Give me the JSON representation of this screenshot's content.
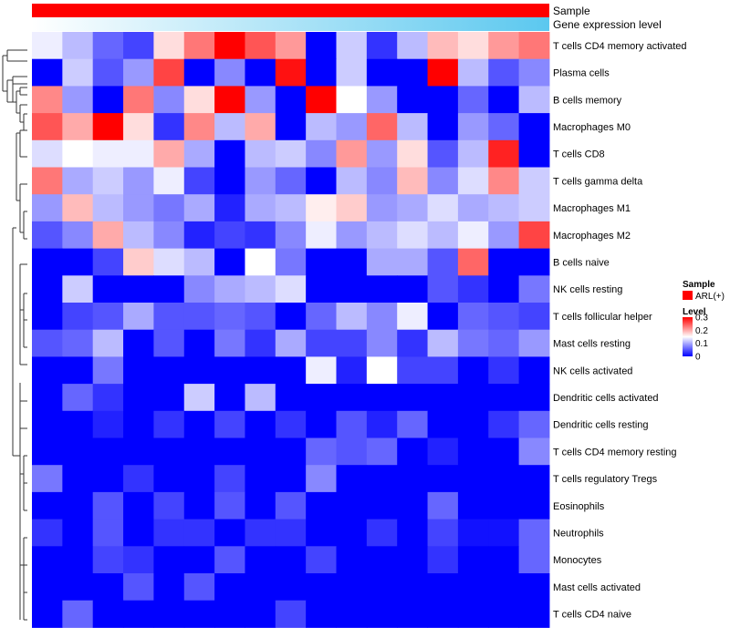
{
  "chart_data": {
    "type": "heatmap",
    "title": "",
    "annotation_tracks": [
      {
        "name": "Sample",
        "color": "#ff0000"
      },
      {
        "name": "Gene expression level",
        "gradient_from": "#ffffff",
        "gradient_to": "#5bc8ef"
      }
    ],
    "rows": [
      "T cells CD4 memory activated",
      "Plasma cells",
      "B cells memory",
      "Macrophages M0",
      "T cells CD8",
      "T cells gamma delta",
      "Macrophages M1",
      "Macrophages M2",
      "B cells naive",
      "NK cells resting",
      "T cells follicular helper",
      "Mast cells resting",
      "NK cells activated",
      "Dendritic cells activated",
      "Dendritic cells resting",
      "T cells CD4 memory resting",
      "T cells regulatory  Tregs",
      "Eosinophils",
      "Neutrophils",
      "Monocytes",
      "Mast cells activated",
      "T cells CD4 naive"
    ],
    "values": [
      [
        0.14,
        0.11,
        0.06,
        0.04,
        0.17,
        0.23,
        0.3,
        0.25,
        0.21,
        0.0,
        0.12,
        0.03,
        0.11,
        0.19,
        0.17,
        0.21,
        0.23
      ],
      [
        0.0,
        0.12,
        0.05,
        0.09,
        0.26,
        0.0,
        0.08,
        0.0,
        0.29,
        0.0,
        0.12,
        0.0,
        0.0,
        0.3,
        0.11,
        0.05,
        0.08
      ],
      [
        0.22,
        0.09,
        0.0,
        0.23,
        0.08,
        0.17,
        0.3,
        0.09,
        0.0,
        0.3,
        0.15,
        0.09,
        0.0,
        0.0,
        0.06,
        0.0,
        0.11
      ],
      [
        0.25,
        0.2,
        0.3,
        0.17,
        0.03,
        0.22,
        0.11,
        0.2,
        0.0,
        0.11,
        0.09,
        0.24,
        0.11,
        0.0,
        0.09,
        0.06,
        0.0
      ],
      [
        0.13,
        0.15,
        0.14,
        0.14,
        0.2,
        0.1,
        0.0,
        0.11,
        0.12,
        0.08,
        0.21,
        0.09,
        0.17,
        0.05,
        0.11,
        0.28,
        0.0
      ],
      [
        0.23,
        0.1,
        0.12,
        0.09,
        0.14,
        0.04,
        0.0,
        0.09,
        0.06,
        0.0,
        0.11,
        0.08,
        0.19,
        0.08,
        0.13,
        0.22,
        0.12
      ],
      [
        0.09,
        0.19,
        0.11,
        0.09,
        0.07,
        0.1,
        0.02,
        0.1,
        0.11,
        0.16,
        0.18,
        0.09,
        0.1,
        0.13,
        0.1,
        0.11,
        0.12
      ],
      [
        0.05,
        0.08,
        0.2,
        0.11,
        0.08,
        0.02,
        0.04,
        0.03,
        0.08,
        0.14,
        0.09,
        0.11,
        0.13,
        0.11,
        0.14,
        0.09,
        0.26
      ],
      [
        0.0,
        0.0,
        0.04,
        0.18,
        0.13,
        0.11,
        0.0,
        0.15,
        0.07,
        0.0,
        0.0,
        0.1,
        0.1,
        0.05,
        0.24,
        0.0,
        0.0
      ],
      [
        0.0,
        0.12,
        0.0,
        0.0,
        0.0,
        0.08,
        0.1,
        0.11,
        0.13,
        0.0,
        0.0,
        0.0,
        0.0,
        0.05,
        0.03,
        0.0,
        0.07
      ],
      [
        0.0,
        0.04,
        0.05,
        0.1,
        0.05,
        0.05,
        0.06,
        0.05,
        0.0,
        0.06,
        0.11,
        0.08,
        0.14,
        0.0,
        0.06,
        0.05,
        0.04
      ],
      [
        0.05,
        0.06,
        0.11,
        0.0,
        0.05,
        0.0,
        0.07,
        0.03,
        0.1,
        0.04,
        0.04,
        0.08,
        0.03,
        0.11,
        0.07,
        0.06,
        0.09
      ],
      [
        0.0,
        0.0,
        0.07,
        0.0,
        0.0,
        0.0,
        0.0,
        0.0,
        0.0,
        0.14,
        0.02,
        0.15,
        0.04,
        0.04,
        0.0,
        0.03,
        0.0
      ],
      [
        0.0,
        0.06,
        0.03,
        0.0,
        0.0,
        0.12,
        0.0,
        0.11,
        0.0,
        0.0,
        0.0,
        0.0,
        0.0,
        0.0,
        0.0,
        0.0,
        0.0
      ],
      [
        0.0,
        0.0,
        0.02,
        0.0,
        0.03,
        0.0,
        0.04,
        0.0,
        0.03,
        0.0,
        0.05,
        0.02,
        0.06,
        0.0,
        0.0,
        0.03,
        0.06
      ],
      [
        0.0,
        0.0,
        0.0,
        0.0,
        0.0,
        0.0,
        0.0,
        0.0,
        0.0,
        0.06,
        0.05,
        0.06,
        0.0,
        0.02,
        0.0,
        0.0,
        0.08
      ],
      [
        0.07,
        0.0,
        0.0,
        0.03,
        0.0,
        0.0,
        0.04,
        0.0,
        0.0,
        0.08,
        0.0,
        0.0,
        0.0,
        0.0,
        0.0,
        0.0,
        0.0
      ],
      [
        0.0,
        0.0,
        0.05,
        0.0,
        0.04,
        0.0,
        0.05,
        0.0,
        0.05,
        0.0,
        0.0,
        0.0,
        0.0,
        0.06,
        0.0,
        0.0,
        0.0
      ],
      [
        0.03,
        0.0,
        0.05,
        0.0,
        0.03,
        0.03,
        0.0,
        0.03,
        0.03,
        0.0,
        0.0,
        0.03,
        0.0,
        0.04,
        0.01,
        0.01,
        0.06
      ],
      [
        0.0,
        0.0,
        0.04,
        0.03,
        0.0,
        0.0,
        0.05,
        0.0,
        0.0,
        0.04,
        0.0,
        0.0,
        0.0,
        0.03,
        0.0,
        0.0,
        0.06
      ],
      [
        0.0,
        0.0,
        0.0,
        0.05,
        0.0,
        0.05,
        0.0,
        0.0,
        0.0,
        0.0,
        0.0,
        0.0,
        0.0,
        0.0,
        0.0,
        0.0,
        0.0
      ],
      [
        0.0,
        0.06,
        0.0,
        0.0,
        0.0,
        0.0,
        0.0,
        0.0,
        0.04,
        0.0,
        0.0,
        0.0,
        0.0,
        0.0,
        0.0,
        0.0,
        0.0
      ]
    ],
    "value_range": [
      0,
      0.3
    ],
    "color_scale": {
      "low": "#0000ff",
      "mid": "#ffffff",
      "high": "#ff0000",
      "mid_value": 0.15
    },
    "legend": {
      "sample": {
        "title": "Sample",
        "entries": [
          {
            "label": "ARL(+)",
            "color": "#ff0000"
          }
        ]
      },
      "level": {
        "title": "Level",
        "ticks": [
          {
            "value": 0.3,
            "label": "0.3"
          },
          {
            "value": 0.2,
            "label": "0.2"
          },
          {
            "value": 0.1,
            "label": "0.1"
          },
          {
            "value": 0,
            "label": "0"
          }
        ]
      }
    },
    "dendrogram": "row clustering tree (left side)"
  }
}
